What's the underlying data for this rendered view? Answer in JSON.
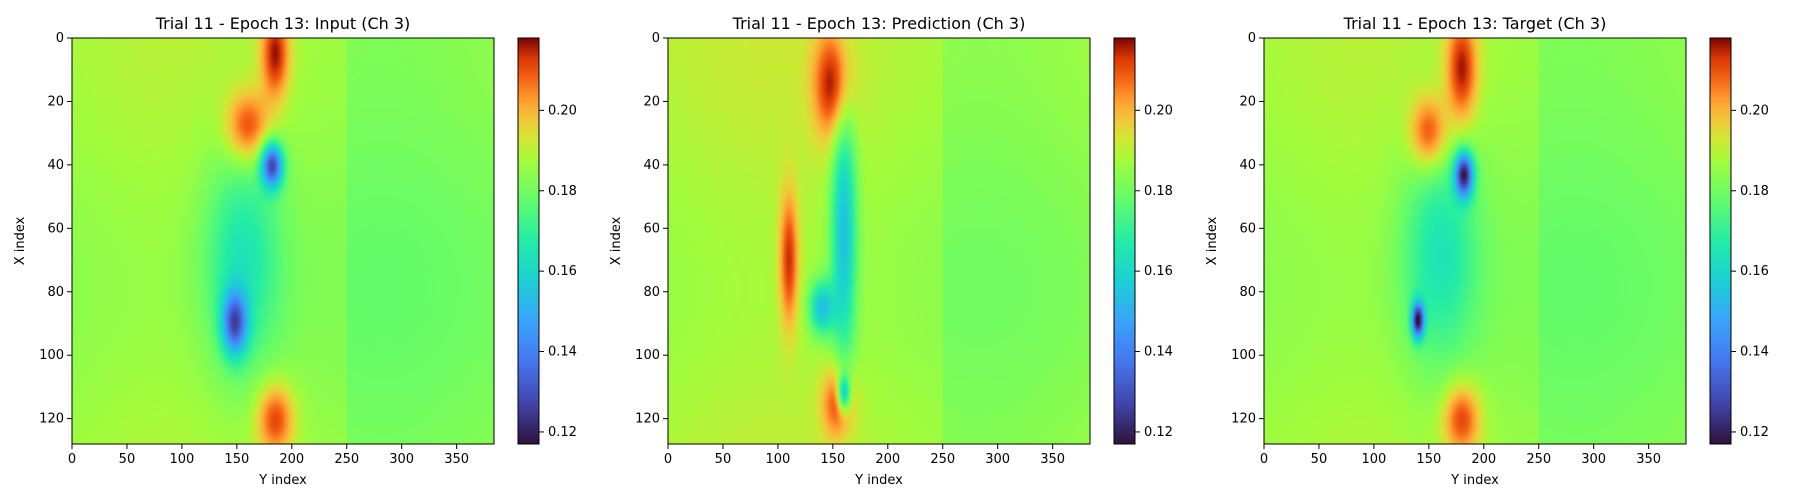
{
  "figure": {
    "colormap": "turbo",
    "colorbar": {
      "min": 0.117,
      "max": 0.218,
      "ticks": [
        0.12,
        0.14,
        0.16,
        0.18,
        0.2
      ],
      "tick_labels": [
        "0.12",
        "0.14",
        "0.16",
        "0.18",
        "0.20"
      ]
    }
  },
  "chart_data": [
    {
      "type": "heatmap",
      "title": "Trial 11 - Epoch 13: Input (Ch 3)",
      "xlabel": "Y index",
      "ylabel": "X index",
      "xlim": [
        0,
        384
      ],
      "ylim": [
        128,
        0
      ],
      "xticks": [
        0,
        50,
        100,
        150,
        200,
        250,
        300,
        350
      ],
      "yticks": [
        0,
        20,
        40,
        60,
        80,
        100,
        120
      ],
      "value_range": [
        0.117,
        0.218
      ],
      "background_value": 0.186,
      "features": [
        {
          "kind": "high",
          "x": 185,
          "y": 5,
          "value": 0.215,
          "sx": 9,
          "sy": 10
        },
        {
          "kind": "high",
          "x": 160,
          "y": 28,
          "value": 0.212,
          "sx": 14,
          "sy": 8
        },
        {
          "kind": "high",
          "x": 185,
          "y": 120,
          "value": 0.212,
          "sx": 12,
          "sy": 8
        },
        {
          "kind": "low",
          "x": 182,
          "y": 40,
          "value": 0.13,
          "sx": 7,
          "sy": 5
        },
        {
          "kind": "low",
          "x": 148,
          "y": 90,
          "value": 0.14,
          "sx": 8,
          "sy": 7
        },
        {
          "kind": "low",
          "x": 155,
          "y": 70,
          "value": 0.165,
          "sx": 25,
          "sy": 25
        }
      ]
    },
    {
      "type": "heatmap",
      "title": "Trial 11 - Epoch 13: Prediction (Ch 3)",
      "xlabel": "Y index",
      "ylabel": "X index",
      "xlim": [
        0,
        384
      ],
      "ylim": [
        128,
        0
      ],
      "xticks": [
        0,
        50,
        100,
        150,
        200,
        250,
        300,
        350
      ],
      "yticks": [
        0,
        20,
        40,
        60,
        80,
        100,
        120
      ],
      "value_range": [
        0.117,
        0.218
      ],
      "background_value": 0.188,
      "features": [
        {
          "kind": "high",
          "x": 150,
          "y": 15,
          "value": 0.216,
          "sx": 12,
          "sy": 12
        },
        {
          "kind": "high",
          "x": 110,
          "y": 70,
          "value": 0.214,
          "sx": 6,
          "sy": 15
        },
        {
          "kind": "high",
          "x": 155,
          "y": 115,
          "value": 0.214,
          "sx": 10,
          "sy": 8
        },
        {
          "kind": "low",
          "x": 160,
          "y": 60,
          "value": 0.155,
          "sx": 8,
          "sy": 30
        },
        {
          "kind": "low",
          "x": 140,
          "y": 85,
          "value": 0.155,
          "sx": 8,
          "sy": 6
        },
        {
          "kind": "low",
          "x": 160,
          "y": 112,
          "value": 0.145,
          "sx": 4,
          "sy": 4
        }
      ]
    },
    {
      "type": "heatmap",
      "title": "Trial 11 - Epoch 13: Target (Ch 3)",
      "xlabel": "Y index",
      "ylabel": "X index",
      "xlim": [
        0,
        384
      ],
      "ylim": [
        128,
        0
      ],
      "xticks": [
        0,
        50,
        100,
        150,
        200,
        250,
        300,
        350
      ],
      "yticks": [
        0,
        20,
        40,
        60,
        80,
        100,
        120
      ],
      "value_range": [
        0.117,
        0.218
      ],
      "background_value": 0.186,
      "features": [
        {
          "kind": "high",
          "x": 180,
          "y": 10,
          "value": 0.215,
          "sx": 10,
          "sy": 12
        },
        {
          "kind": "high",
          "x": 150,
          "y": 30,
          "value": 0.212,
          "sx": 12,
          "sy": 8
        },
        {
          "kind": "high",
          "x": 180,
          "y": 120,
          "value": 0.212,
          "sx": 12,
          "sy": 8
        },
        {
          "kind": "low",
          "x": 182,
          "y": 43,
          "value": 0.125,
          "sx": 6,
          "sy": 5
        },
        {
          "kind": "low",
          "x": 140,
          "y": 89,
          "value": 0.125,
          "sx": 4,
          "sy": 4
        },
        {
          "kind": "low",
          "x": 160,
          "y": 68,
          "value": 0.165,
          "sx": 25,
          "sy": 25
        }
      ]
    }
  ]
}
